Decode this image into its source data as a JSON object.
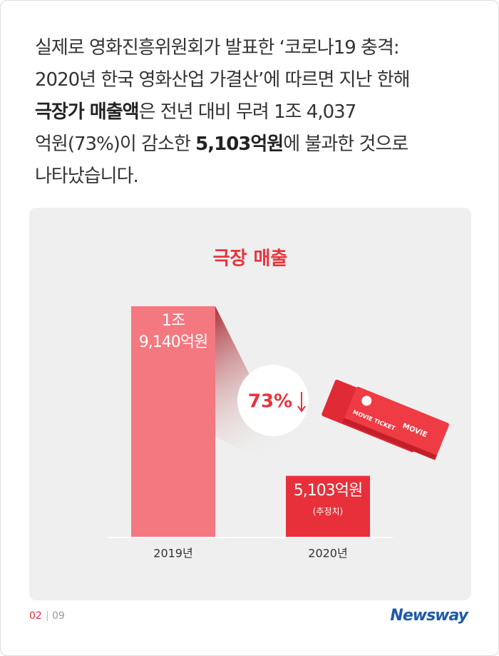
{
  "text": {
    "lines": [
      [
        {
          "text": "실제로 영화진흥위원회가  발표한 ‘코로나19 충격:",
          "bold": false
        }
      ],
      [
        {
          "text": "2020년 한국 영화산업 가결산’에 따르면 지난 한해",
          "bold": false
        }
      ],
      [
        {
          "text": "극장가 매출액",
          "bold": true
        },
        {
          "text": "은 전년 대비 무려 1조 4,037",
          "bold": false
        }
      ],
      [
        {
          "text": "억원(73%)이 감소한 ",
          "bold": false
        },
        {
          "text": "5,103억원",
          "bold": true
        },
        {
          "text": "에 불과한 것으로",
          "bold": false
        }
      ],
      [
        {
          "text": "나타났습니다.",
          "bold": false
        }
      ]
    ]
  },
  "chart_data": {
    "type": "bar",
    "title": "극장 매출",
    "categories": [
      "2019년",
      "2020년"
    ],
    "values": [
      19140,
      5103
    ],
    "value_labels": [
      "1조\n9,140억원",
      "5,103억원"
    ],
    "colors": [
      "#f47880",
      "#e8303a"
    ],
    "annotations": [
      "(추정치)",
      "73%"
    ],
    "ticket_labels": [
      "MOVIE",
      "MOVIE TICKET"
    ]
  },
  "footer": {
    "page": "02",
    "separator": "|",
    "total": "09",
    "logo": "Newsway"
  }
}
